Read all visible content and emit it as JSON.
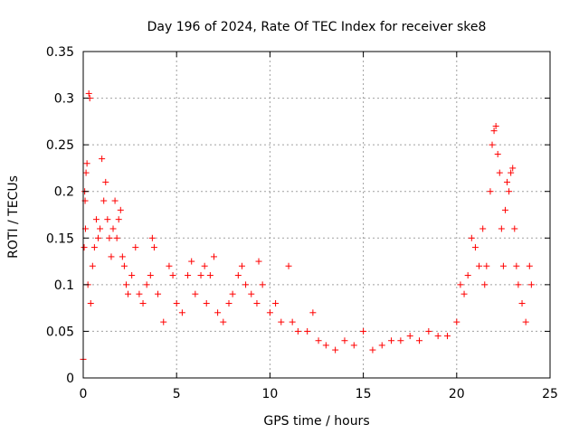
{
  "chart_data": {
    "type": "scatter",
    "title": "Day 196 of 2024, Rate Of TEC Index for receiver ske8",
    "xlabel": "GPS time / hours",
    "ylabel": "ROTI / TECUs",
    "xlim": [
      0,
      25
    ],
    "ylim": [
      0,
      0.35
    ],
    "x_ticks": [
      0,
      5,
      10,
      15,
      20,
      25
    ],
    "x_tick_labels": [
      "0",
      "5",
      "10",
      "15",
      "20",
      "25"
    ],
    "y_ticks": [
      0,
      0.05,
      0.1,
      0.15,
      0.2,
      0.25,
      0.3,
      0.35
    ],
    "y_tick_labels": [
      "0",
      "0.05",
      "0.1",
      "0.15",
      "0.2",
      "0.25",
      "0.3",
      "0.35"
    ],
    "grid": true,
    "marker": "+",
    "color": "#ff0000",
    "series": [
      {
        "name": "ROTI",
        "points": [
          [
            0.0,
            0.02
          ],
          [
            0.05,
            0.14
          ],
          [
            0.08,
            0.2
          ],
          [
            0.1,
            0.19
          ],
          [
            0.12,
            0.16
          ],
          [
            0.15,
            0.22
          ],
          [
            0.2,
            0.23
          ],
          [
            0.25,
            0.1
          ],
          [
            0.3,
            0.305
          ],
          [
            0.35,
            0.3
          ],
          [
            0.4,
            0.08
          ],
          [
            0.5,
            0.12
          ],
          [
            0.6,
            0.14
          ],
          [
            0.7,
            0.17
          ],
          [
            0.8,
            0.15
          ],
          [
            0.9,
            0.16
          ],
          [
            1.0,
            0.235
          ],
          [
            1.1,
            0.19
          ],
          [
            1.2,
            0.21
          ],
          [
            1.3,
            0.17
          ],
          [
            1.4,
            0.15
          ],
          [
            1.5,
            0.13
          ],
          [
            1.6,
            0.16
          ],
          [
            1.7,
            0.19
          ],
          [
            1.8,
            0.15
          ],
          [
            1.9,
            0.17
          ],
          [
            2.0,
            0.18
          ],
          [
            2.1,
            0.13
          ],
          [
            2.2,
            0.12
          ],
          [
            2.3,
            0.1
          ],
          [
            2.4,
            0.09
          ],
          [
            2.6,
            0.11
          ],
          [
            2.8,
            0.14
          ],
          [
            3.0,
            0.09
          ],
          [
            3.2,
            0.08
          ],
          [
            3.4,
            0.1
          ],
          [
            3.6,
            0.11
          ],
          [
            3.7,
            0.15
          ],
          [
            3.8,
            0.14
          ],
          [
            4.0,
            0.09
          ],
          [
            4.3,
            0.06
          ],
          [
            4.6,
            0.12
          ],
          [
            4.8,
            0.11
          ],
          [
            5.0,
            0.08
          ],
          [
            5.3,
            0.07
          ],
          [
            5.6,
            0.11
          ],
          [
            5.8,
            0.125
          ],
          [
            6.0,
            0.09
          ],
          [
            6.3,
            0.11
          ],
          [
            6.5,
            0.12
          ],
          [
            6.6,
            0.08
          ],
          [
            6.8,
            0.11
          ],
          [
            7.0,
            0.13
          ],
          [
            7.2,
            0.07
          ],
          [
            7.5,
            0.06
          ],
          [
            7.8,
            0.08
          ],
          [
            8.0,
            0.09
          ],
          [
            8.3,
            0.11
          ],
          [
            8.5,
            0.12
          ],
          [
            8.7,
            0.1
          ],
          [
            9.0,
            0.09
          ],
          [
            9.3,
            0.08
          ],
          [
            9.4,
            0.125
          ],
          [
            9.6,
            0.1
          ],
          [
            10.0,
            0.07
          ],
          [
            10.3,
            0.08
          ],
          [
            10.6,
            0.06
          ],
          [
            11.0,
            0.12
          ],
          [
            11.2,
            0.06
          ],
          [
            11.5,
            0.05
          ],
          [
            12.0,
            0.05
          ],
          [
            12.3,
            0.07
          ],
          [
            12.6,
            0.04
          ],
          [
            13.0,
            0.035
          ],
          [
            13.5,
            0.03
          ],
          [
            14.0,
            0.04
          ],
          [
            14.5,
            0.035
          ],
          [
            15.0,
            0.05
          ],
          [
            15.5,
            0.03
          ],
          [
            16.0,
            0.035
          ],
          [
            16.5,
            0.04
          ],
          [
            17.0,
            0.04
          ],
          [
            17.5,
            0.045
          ],
          [
            18.0,
            0.04
          ],
          [
            18.5,
            0.05
          ],
          [
            19.0,
            0.045
          ],
          [
            19.5,
            0.045
          ],
          [
            20.0,
            0.06
          ],
          [
            20.2,
            0.1
          ],
          [
            20.4,
            0.09
          ],
          [
            20.6,
            0.11
          ],
          [
            20.8,
            0.15
          ],
          [
            21.0,
            0.14
          ],
          [
            21.2,
            0.12
          ],
          [
            21.4,
            0.16
          ],
          [
            21.5,
            0.1
          ],
          [
            21.6,
            0.12
          ],
          [
            21.8,
            0.2
          ],
          [
            21.9,
            0.25
          ],
          [
            22.0,
            0.265
          ],
          [
            22.1,
            0.27
          ],
          [
            22.2,
            0.24
          ],
          [
            22.3,
            0.22
          ],
          [
            22.4,
            0.16
          ],
          [
            22.5,
            0.12
          ],
          [
            22.6,
            0.18
          ],
          [
            22.7,
            0.21
          ],
          [
            22.8,
            0.2
          ],
          [
            22.9,
            0.22
          ],
          [
            23.0,
            0.225
          ],
          [
            23.1,
            0.16
          ],
          [
            23.2,
            0.12
          ],
          [
            23.3,
            0.1
          ],
          [
            23.5,
            0.08
          ],
          [
            23.7,
            0.06
          ],
          [
            23.9,
            0.12
          ],
          [
            24.0,
            0.1
          ]
        ]
      }
    ]
  }
}
